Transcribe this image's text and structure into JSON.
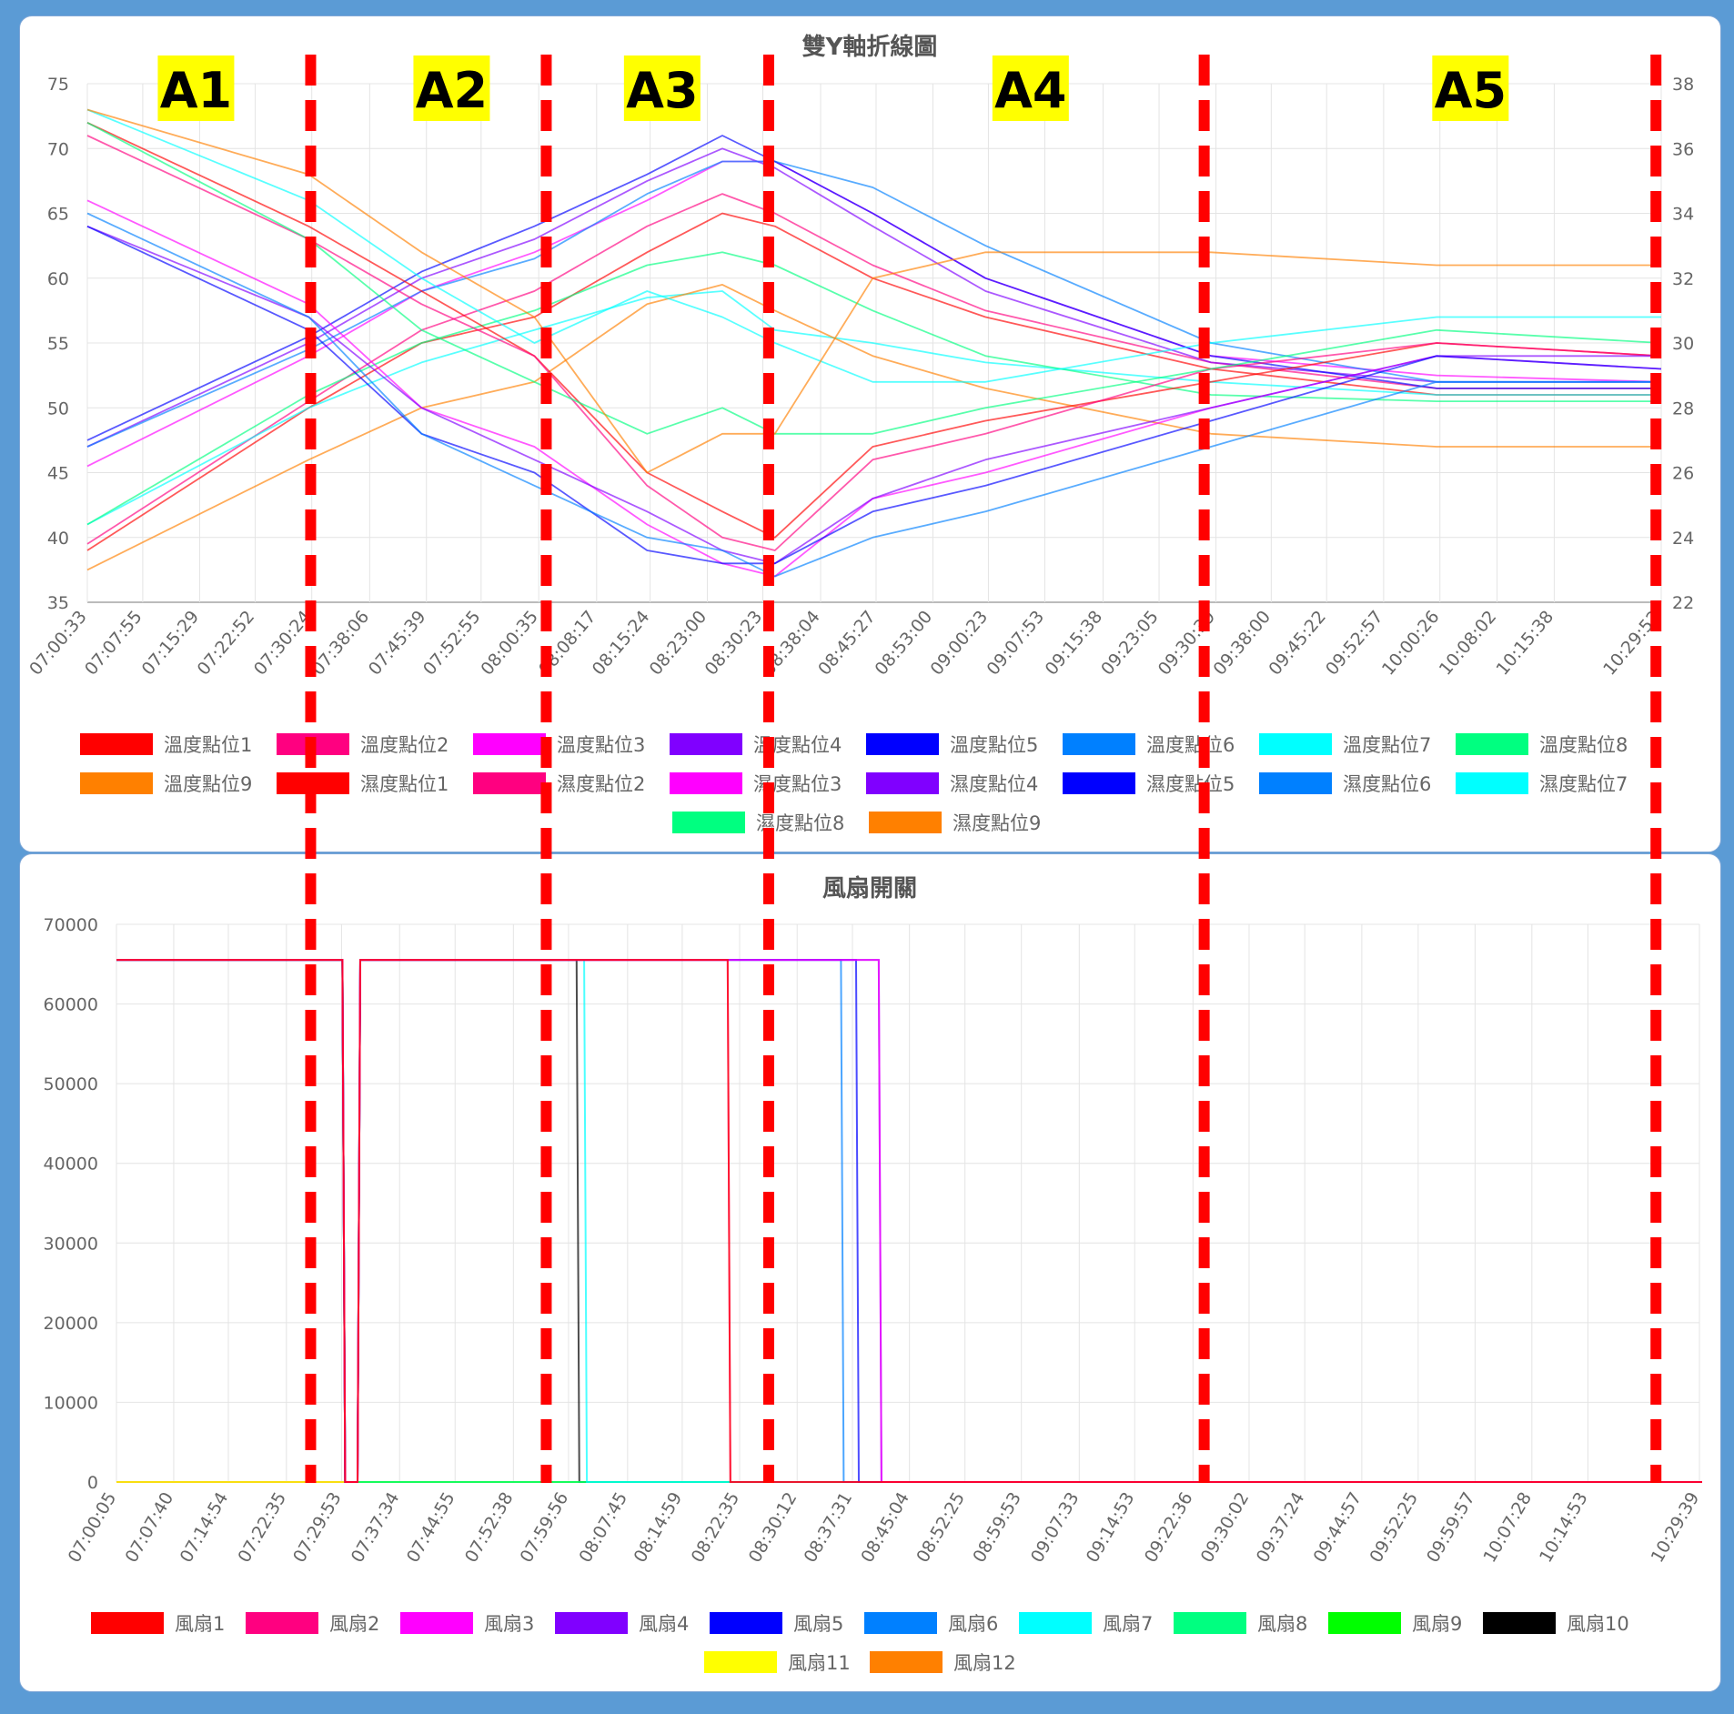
{
  "annotations": {
    "zones": [
      "A1",
      "A2",
      "A3",
      "A4",
      "A5"
    ],
    "boundaries": [
      "07:30:15",
      "08:01:35",
      "08:31:10",
      "09:29:05",
      "10:29:10"
    ],
    "zone_label_times": [
      "07:15:00",
      "07:49:00",
      "08:17:00",
      "09:06:00",
      "10:04:30"
    ]
  },
  "chart_data": [
    {
      "type": "line",
      "title": "雙Y軸折線圖",
      "x_range": [
        "07:00:33",
        "10:29:52"
      ],
      "x_ticks": [
        "07:00:33",
        "07:07:55",
        "07:15:29",
        "07:22:52",
        "07:30:24",
        "07:38:06",
        "07:45:39",
        "07:52:55",
        "08:00:35",
        "08:08:17",
        "08:15:24",
        "08:23:00",
        "08:30:23",
        "08:38:04",
        "08:45:27",
        "08:53:00",
        "09:00:23",
        "09:07:53",
        "09:15:38",
        "09:23:05",
        "09:30:39",
        "09:38:00",
        "09:45:22",
        "09:52:57",
        "10:00:26",
        "10:08:02",
        "10:15:38",
        "10:29:52"
      ],
      "y_left": {
        "min": 35,
        "max": 75,
        "ticks": [
          "35",
          "40",
          "45",
          "50",
          "55",
          "60",
          "65",
          "70",
          "75"
        ]
      },
      "y_right": {
        "min": 22,
        "max": 38,
        "ticks": [
          "22",
          "24",
          "26",
          "28",
          "30",
          "32",
          "34",
          "36",
          "38"
        ]
      },
      "grid": true,
      "legend": "bottom",
      "x": [
        "07:00:33",
        "07:30:00",
        "07:45:00",
        "08:00:00",
        "08:15:00",
        "08:25:00",
        "08:32:00",
        "08:45:00",
        "09:00:00",
        "09:30:00",
        "10:00:00",
        "10:29:52"
      ],
      "series": [
        {
          "name": "溫度點位1",
          "axis": "right",
          "color": "#ff0000",
          "values": [
            23.6,
            28.0,
            30.0,
            30.8,
            32.8,
            34.0,
            33.6,
            32.0,
            30.8,
            29.2,
            28.4,
            28.4
          ]
        },
        {
          "name": "溫度點位2",
          "axis": "right",
          "color": "#ff0080",
          "values": [
            23.8,
            28.2,
            30.4,
            31.6,
            33.6,
            34.6,
            34.0,
            32.4,
            31.0,
            29.4,
            28.6,
            28.6
          ]
        },
        {
          "name": "溫度點位3",
          "axis": "right",
          "color": "#ff00ff",
          "values": [
            26.2,
            29.6,
            31.6,
            32.8,
            34.4,
            35.6,
            35.6,
            34.0,
            32.0,
            29.6,
            29.0,
            28.8
          ]
        },
        {
          "name": "溫度點位4",
          "axis": "right",
          "color": "#8000ff",
          "values": [
            26.8,
            30.0,
            32.0,
            33.2,
            35.0,
            36.0,
            35.4,
            33.6,
            31.6,
            29.4,
            28.8,
            28.8
          ]
        },
        {
          "name": "溫度點位5",
          "axis": "right",
          "color": "#0000ff",
          "values": [
            27.0,
            30.2,
            32.2,
            33.6,
            35.2,
            36.4,
            35.6,
            34.0,
            32.0,
            29.6,
            28.6,
            28.6
          ]
        },
        {
          "name": "溫度點位6",
          "axis": "right",
          "color": "#0080ff",
          "values": [
            26.8,
            29.8,
            31.6,
            32.6,
            34.6,
            35.6,
            35.6,
            34.8,
            33.0,
            30.0,
            28.8,
            28.8
          ]
        },
        {
          "name": "溫度點位7",
          "axis": "right",
          "color": "#00ffff",
          "values": [
            24.4,
            28.0,
            29.4,
            30.4,
            31.4,
            31.6,
            30.4,
            30.0,
            29.4,
            28.8,
            28.4,
            28.4
          ]
        },
        {
          "name": "溫度點位8",
          "axis": "right",
          "color": "#00ff80",
          "values": [
            24.4,
            28.4,
            30.0,
            31.0,
            32.4,
            32.8,
            32.4,
            31.0,
            29.6,
            28.4,
            28.2,
            28.2
          ]
        },
        {
          "name": "溫度點位9",
          "axis": "right",
          "color": "#ff8000",
          "values": [
            23.0,
            26.4,
            28.0,
            28.8,
            31.2,
            31.8,
            31.0,
            29.6,
            28.6,
            27.2,
            26.8,
            26.8
          ]
        },
        {
          "name": "濕度點位1",
          "axis": "left",
          "color": "#ff0000",
          "values": [
            72,
            64,
            59,
            54,
            45,
            42,
            40,
            47,
            49,
            52,
            55,
            54
          ]
        },
        {
          "name": "濕度點位2",
          "axis": "left",
          "color": "#ff0080",
          "values": [
            71,
            63,
            58,
            54,
            44,
            40,
            39,
            46,
            48,
            53,
            55,
            54
          ]
        },
        {
          "name": "濕度點位3",
          "axis": "left",
          "color": "#ff00ff",
          "values": [
            66,
            58,
            50,
            47,
            41,
            38,
            37,
            43,
            45,
            50,
            54,
            53
          ]
        },
        {
          "name": "濕度點位4",
          "axis": "left",
          "color": "#8000ff",
          "values": [
            64,
            57,
            50,
            46,
            42,
            39,
            38,
            43,
            46,
            50,
            54,
            54
          ]
        },
        {
          "name": "濕度點位5",
          "axis": "left",
          "color": "#0000ff",
          "values": [
            64,
            56,
            48,
            45,
            39,
            38,
            38,
            42,
            44,
            49,
            54,
            53
          ]
        },
        {
          "name": "濕度點位6",
          "axis": "left",
          "color": "#0080ff",
          "values": [
            65,
            57,
            48,
            44,
            40,
            39,
            37,
            40,
            42,
            47,
            52,
            52
          ]
        },
        {
          "name": "濕度點位7",
          "axis": "left",
          "color": "#00ffff",
          "values": [
            73,
            66,
            60,
            55,
            59,
            57,
            55,
            52,
            52,
            55,
            57,
            57
          ]
        },
        {
          "name": "濕度點位8",
          "axis": "left",
          "color": "#00ff80",
          "values": [
            72,
            63,
            56,
            52,
            48,
            50,
            48,
            48,
            50,
            53,
            56,
            55
          ]
        },
        {
          "name": "濕度點位9",
          "axis": "left",
          "color": "#ff8000",
          "values": [
            73,
            68,
            62,
            57,
            45,
            48,
            48,
            60,
            62,
            62,
            61,
            61
          ]
        }
      ]
    },
    {
      "type": "line",
      "title": "風扇開關",
      "x_range": [
        "07:00:05",
        "10:29:39"
      ],
      "x_ticks": [
        "07:00:05",
        "07:07:40",
        "07:14:54",
        "07:22:35",
        "07:29:53",
        "07:37:34",
        "07:44:55",
        "07:52:38",
        "07:59:56",
        "08:07:45",
        "08:14:59",
        "08:22:35",
        "08:30:12",
        "08:37:31",
        "08:45:04",
        "08:52:25",
        "08:59:53",
        "09:07:33",
        "09:14:53",
        "09:22:36",
        "09:30:02",
        "09:37:24",
        "09:44:57",
        "09:52:25",
        "09:59:57",
        "10:07:28",
        "10:14:53",
        "10:29:39"
      ],
      "y": {
        "min": 0,
        "max": 70000,
        "ticks": [
          "0",
          "10000",
          "20000",
          "30000",
          "40000",
          "50000",
          "60000",
          "70000"
        ]
      },
      "grid": true,
      "legend": "bottom",
      "series": [
        {
          "name": "風扇1",
          "color": "#ff0000",
          "steps": [
            [
              "07:00:05",
              65535
            ],
            [
              "07:30:00",
              0
            ],
            [
              "07:32:00",
              65535
            ],
            [
              "08:21:00",
              0
            ],
            [
              "10:29:39",
              0
            ]
          ]
        },
        {
          "name": "風扇2",
          "color": "#ff0080",
          "steps": [
            [
              "07:00:05",
              65535
            ],
            [
              "07:30:00",
              0
            ],
            [
              "07:32:00",
              65535
            ],
            [
              "08:21:00",
              0
            ],
            [
              "10:29:39",
              0
            ]
          ]
        },
        {
          "name": "風扇3",
          "color": "#ff00ff",
          "steps": [
            [
              "07:00:05",
              65535
            ],
            [
              "07:30:00",
              0
            ],
            [
              "07:32:00",
              65535
            ],
            [
              "08:41:00",
              0
            ],
            [
              "10:29:39",
              0
            ]
          ]
        },
        {
          "name": "風扇4",
          "color": "#8000ff",
          "steps": [
            [
              "07:00:05",
              65535
            ],
            [
              "07:30:00",
              0
            ],
            [
              "07:32:00",
              65535
            ],
            [
              "08:41:00",
              0
            ],
            [
              "10:29:39",
              0
            ]
          ]
        },
        {
          "name": "風扇5",
          "color": "#0000ff",
          "steps": [
            [
              "07:00:05",
              65535
            ],
            [
              "07:30:00",
              0
            ],
            [
              "07:32:00",
              65535
            ],
            [
              "08:38:00",
              0
            ],
            [
              "10:29:39",
              0
            ]
          ]
        },
        {
          "name": "風扇6",
          "color": "#0080ff",
          "steps": [
            [
              "07:00:05",
              65535
            ],
            [
              "07:30:00",
              0
            ],
            [
              "07:32:00",
              65535
            ],
            [
              "08:36:00",
              0
            ],
            [
              "10:29:39",
              0
            ]
          ]
        },
        {
          "name": "風扇7",
          "color": "#00ffff",
          "steps": [
            [
              "07:00:05",
              65535
            ],
            [
              "07:30:00",
              0
            ],
            [
              "07:32:00",
              65535
            ],
            [
              "08:02:00",
              0
            ],
            [
              "10:29:39",
              0
            ]
          ]
        },
        {
          "name": "風扇8",
          "color": "#00ff80",
          "steps": [
            [
              "07:00:05",
              65535
            ],
            [
              "07:30:00",
              0
            ],
            [
              "10:29:39",
              0
            ]
          ]
        },
        {
          "name": "風扇9",
          "color": "#00ff00",
          "steps": [
            [
              "07:00:05",
              65535
            ],
            [
              "07:30:00",
              0
            ],
            [
              "10:29:39",
              0
            ]
          ]
        },
        {
          "name": "風扇10",
          "color": "#000000",
          "steps": [
            [
              "07:00:05",
              65535
            ],
            [
              "07:30:00",
              0
            ],
            [
              "07:32:00",
              65535
            ],
            [
              "08:01:00",
              0
            ],
            [
              "10:29:39",
              0
            ]
          ]
        },
        {
          "name": "風扇11",
          "color": "#ffff00",
          "steps": [
            [
              "07:00:05",
              0
            ],
            [
              "10:29:39",
              0
            ]
          ]
        },
        {
          "name": "風扇12",
          "color": "#ff8000",
          "steps": [
            [
              "07:00:05",
              0
            ],
            [
              "10:29:39",
              0
            ]
          ]
        }
      ]
    }
  ]
}
